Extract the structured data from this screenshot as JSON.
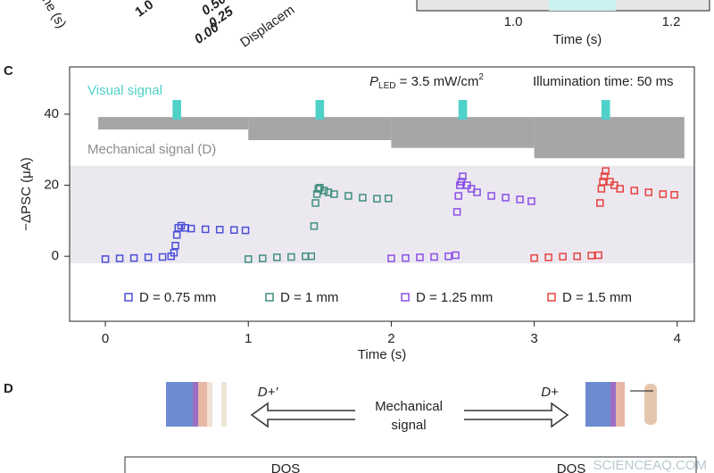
{
  "panel_top": {
    "xticks": [
      "1.0",
      "1.2"
    ],
    "xlabel": "Time (s)",
    "left_labels": [
      "ne (s)",
      "1.0",
      "0.50",
      "0.25",
      "0.00",
      "Displacem"
    ]
  },
  "chart_data": {
    "type": "scatter",
    "panel_label": "C",
    "ylabel": "−ΔPSC (μA)",
    "xlabel": "Time (s)",
    "xlim": [
      -0.25,
      4.12
    ],
    "ylim": [
      -18.3,
      53.3
    ],
    "xticks": [
      0,
      1,
      2,
      3,
      4
    ],
    "yticks": [
      0,
      20,
      40
    ],
    "band": {
      "ylim": [
        -2,
        25.5
      ],
      "color": "#ece8f0"
    },
    "visual_signal": {
      "label": "Visual signal",
      "centers": [
        0.5,
        1.5,
        2.5,
        3.5
      ],
      "width": 0.06,
      "ylim": [
        38.5,
        44
      ],
      "color": "#4fd1c9"
    },
    "mechanical_signal": {
      "label": "Mechanical signal (D)",
      "edges": [
        -0.05,
        1,
        2,
        3,
        4.05
      ],
      "top": 39.2,
      "bottoms": [
        35.7,
        32.7,
        30.5,
        27.6
      ],
      "color": "#a6a6a6"
    },
    "annotations": {
      "p": "P",
      "sub": "LED",
      "rest": " = 3.5 mW/cm",
      "sup": "2",
      "illumination": "Illumination time: 50 ms"
    },
    "series": [
      {
        "name": "D = 0.75 mm",
        "color": "#4a4fd6",
        "x": [
          0,
          0.1,
          0.2,
          0.3,
          0.4,
          0.46,
          0.48,
          0.49,
          0.5,
          0.51,
          0.53,
          0.56,
          0.6,
          0.7,
          0.8,
          0.9,
          0.98
        ],
        "values": [
          -0.8,
          -0.6,
          -0.5,
          -0.3,
          -0.2,
          0,
          1,
          3,
          6,
          8,
          8.6,
          8,
          7.8,
          7.6,
          7.5,
          7.4,
          7.3
        ]
      },
      {
        "name": "D = 1 mm",
        "color": "#3f8f80",
        "x": [
          1.0,
          1.1,
          1.2,
          1.3,
          1.4,
          1.44,
          1.46,
          1.47,
          1.48,
          1.49,
          1.5,
          1.53,
          1.56,
          1.6,
          1.7,
          1.8,
          1.9,
          1.98
        ],
        "values": [
          -0.8,
          -0.6,
          -0.3,
          -0.2,
          0,
          0,
          8.5,
          15,
          17.5,
          19,
          19.3,
          18.5,
          18,
          17.5,
          17,
          16.5,
          16.2,
          16.3
        ]
      },
      {
        "name": "D = 1.25 mm",
        "color": "#8a4fe6",
        "x": [
          2.0,
          2.1,
          2.2,
          2.3,
          2.4,
          2.45,
          2.46,
          2.47,
          2.48,
          2.49,
          2.5,
          2.53,
          2.56,
          2.6,
          2.7,
          2.8,
          2.9,
          2.98
        ],
        "values": [
          -0.6,
          -0.5,
          -0.3,
          -0.2,
          0,
          0.3,
          12.5,
          17,
          20,
          21,
          22.5,
          20,
          19,
          18,
          17,
          16.5,
          16,
          15.5
        ]
      },
      {
        "name": "D = 1.5 mm",
        "color": "#e8423f",
        "x": [
          3.0,
          3.1,
          3.2,
          3.3,
          3.4,
          3.45,
          3.46,
          3.47,
          3.48,
          3.49,
          3.5,
          3.53,
          3.56,
          3.6,
          3.7,
          3.8,
          3.9,
          3.98
        ],
        "values": [
          -0.5,
          -0.3,
          -0.1,
          0,
          0.2,
          0.3,
          15,
          19,
          21,
          22.5,
          24,
          21,
          20,
          19,
          18.5,
          18,
          17.5,
          17.3
        ]
      }
    ]
  },
  "panel_d": {
    "label": "D",
    "left": "D+′",
    "right": "D+",
    "center": [
      "Mechanical",
      "signal"
    ],
    "dos": [
      "DOS",
      "DOS"
    ],
    "watermark": "SCIENCEAQ.COM"
  }
}
